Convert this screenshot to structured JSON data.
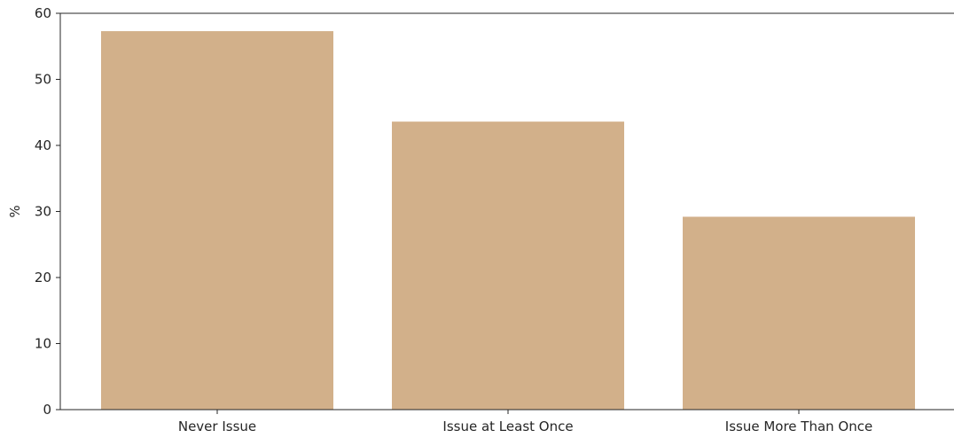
{
  "chart_data": {
    "type": "bar",
    "title": "",
    "xlabel": "",
    "ylabel": "%",
    "categories": [
      "Never Issue",
      "Issue at Least Once",
      "Issue More Than Once"
    ],
    "values": [
      57.3,
      43.6,
      29.2
    ],
    "ylim": [
      0,
      60
    ],
    "yticks": [
      "0",
      "10",
      "20",
      "30",
      "40",
      "50",
      "60"
    ],
    "grid": false,
    "legend": "none",
    "colors": {
      "bar": "#d2b08a",
      "axis": "#262626",
      "text": "#262626"
    }
  }
}
